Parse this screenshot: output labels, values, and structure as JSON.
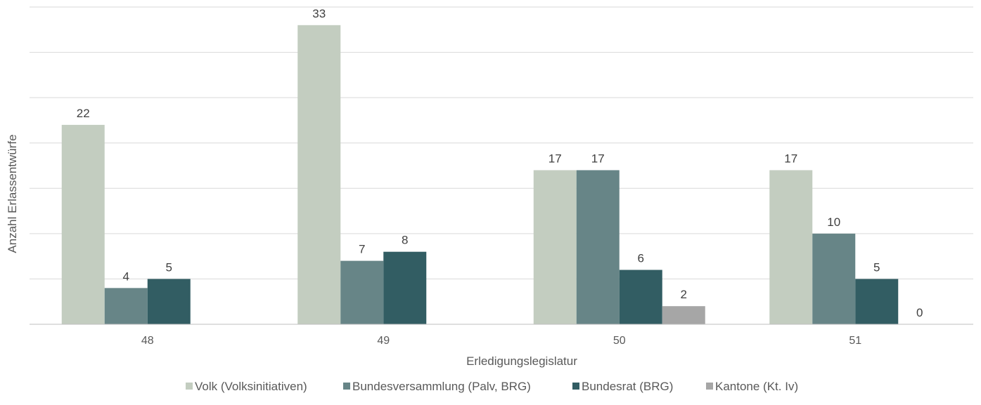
{
  "chart_data": {
    "type": "bar",
    "title": "",
    "xlabel": "Erledigungslegislatur",
    "ylabel": "Anzahl Erlassentwürfe",
    "categories": [
      "48",
      "49",
      "50",
      "51"
    ],
    "series": [
      {
        "name": "Volk (Volksinitiativen)",
        "color": "#c3cdc0",
        "values": [
          22,
          33,
          17,
          17
        ]
      },
      {
        "name": "Bundesversammlung (Palv, BRG)",
        "color": "#678587",
        "values": [
          4,
          7,
          17,
          10
        ]
      },
      {
        "name": "Bundesrat (BRG)",
        "color": "#325d63",
        "values": [
          5,
          8,
          6,
          5
        ]
      },
      {
        "name": "Kantone (Kt. Iv)",
        "color": "#a6a6a6",
        "values": [
          null,
          null,
          2,
          0
        ]
      }
    ],
    "ylim": [
      0,
      35
    ],
    "grid": true,
    "legend_position": "bottom"
  }
}
